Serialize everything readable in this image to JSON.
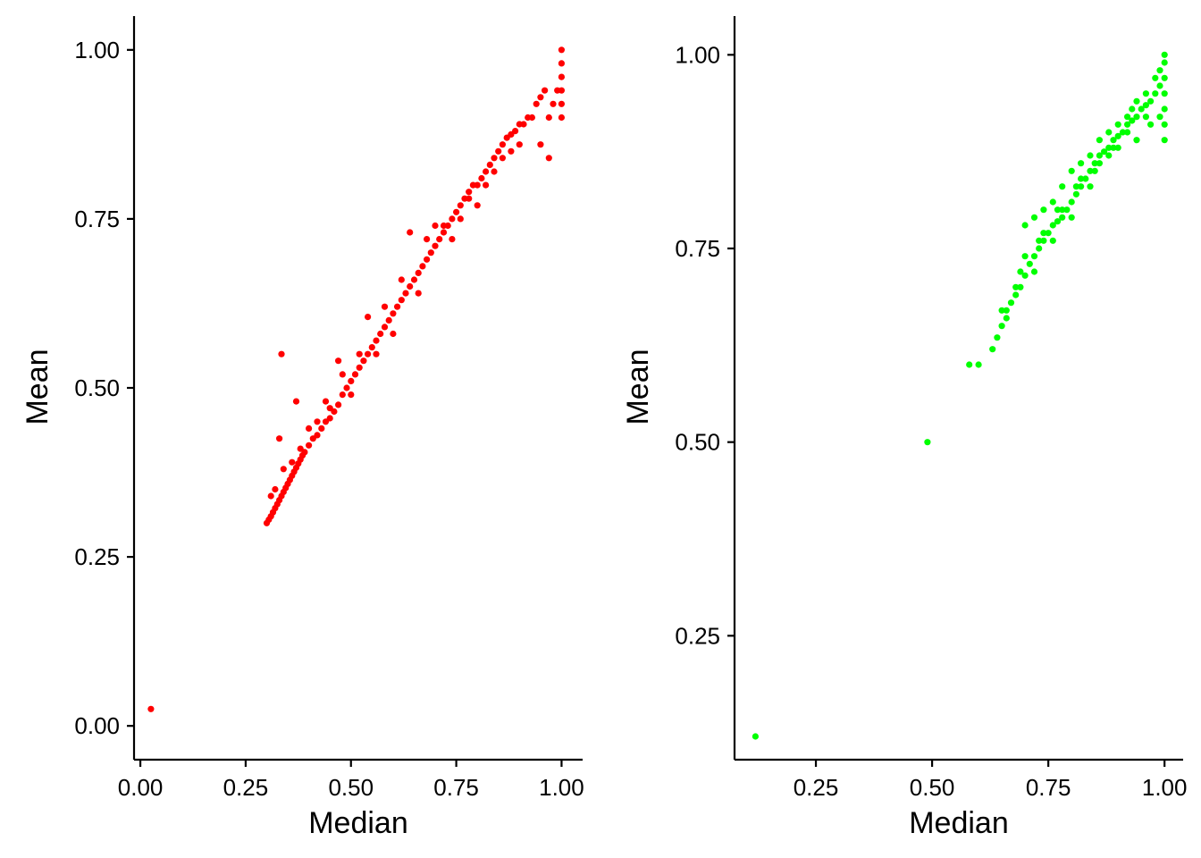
{
  "chart_data": [
    {
      "type": "scatter",
      "title": "",
      "xlabel": "Median",
      "ylabel": "Mean",
      "xlim": [
        -0.015,
        1.05
      ],
      "ylim": [
        -0.05,
        1.05
      ],
      "xticks": [
        0.0,
        0.25,
        0.5,
        0.75,
        1.0
      ],
      "xtick_labels": [
        "0.00",
        "0.25",
        "0.50",
        "0.75",
        "1.00"
      ],
      "yticks": [
        0.0,
        0.25,
        0.5,
        0.75,
        1.0
      ],
      "ytick_labels": [
        "0.00",
        "0.25",
        "0.50",
        "0.75",
        "1.00"
      ],
      "grid": false,
      "legend": "none",
      "point_color": "#ff0000",
      "series": [
        {
          "points": [
            [
              0.025,
              0.025
            ],
            [
              0.3,
              0.3
            ],
            [
              0.305,
              0.305
            ],
            [
              0.31,
              0.31
            ],
            [
              0.315,
              0.316
            ],
            [
              0.32,
              0.322
            ],
            [
              0.325,
              0.328
            ],
            [
              0.33,
              0.334
            ],
            [
              0.335,
              0.34
            ],
            [
              0.34,
              0.346
            ],
            [
              0.345,
              0.352
            ],
            [
              0.35,
              0.358
            ],
            [
              0.355,
              0.364
            ],
            [
              0.36,
              0.37
            ],
            [
              0.365,
              0.376
            ],
            [
              0.37,
              0.382
            ],
            [
              0.375,
              0.388
            ],
            [
              0.38,
              0.394
            ],
            [
              0.385,
              0.4
            ],
            [
              0.39,
              0.405
            ],
            [
              0.4,
              0.415
            ],
            [
              0.41,
              0.425
            ],
            [
              0.42,
              0.43
            ],
            [
              0.43,
              0.44
            ],
            [
              0.44,
              0.45
            ],
            [
              0.45,
              0.455
            ],
            [
              0.46,
              0.465
            ],
            [
              0.47,
              0.475
            ],
            [
              0.48,
              0.49
            ],
            [
              0.49,
              0.5
            ],
            [
              0.5,
              0.51
            ],
            [
              0.51,
              0.52
            ],
            [
              0.52,
              0.53
            ],
            [
              0.53,
              0.54
            ],
            [
              0.54,
              0.55
            ],
            [
              0.55,
              0.56
            ],
            [
              0.56,
              0.57
            ],
            [
              0.57,
              0.58
            ],
            [
              0.58,
              0.59
            ],
            [
              0.59,
              0.6
            ],
            [
              0.6,
              0.61
            ],
            [
              0.61,
              0.62
            ],
            [
              0.62,
              0.63
            ],
            [
              0.63,
              0.64
            ],
            [
              0.64,
              0.65
            ],
            [
              0.65,
              0.66
            ],
            [
              0.66,
              0.67
            ],
            [
              0.67,
              0.68
            ],
            [
              0.68,
              0.69
            ],
            [
              0.69,
              0.7
            ],
            [
              0.7,
              0.71
            ],
            [
              0.71,
              0.72
            ],
            [
              0.72,
              0.73
            ],
            [
              0.73,
              0.74
            ],
            [
              0.74,
              0.75
            ],
            [
              0.75,
              0.76
            ],
            [
              0.76,
              0.77
            ],
            [
              0.77,
              0.78
            ],
            [
              0.78,
              0.79
            ],
            [
              0.79,
              0.8
            ],
            [
              0.8,
              0.8
            ],
            [
              0.81,
              0.81
            ],
            [
              0.82,
              0.82
            ],
            [
              0.83,
              0.83
            ],
            [
              0.84,
              0.84
            ],
            [
              0.85,
              0.85
            ],
            [
              0.86,
              0.86
            ],
            [
              0.87,
              0.87
            ],
            [
              0.88,
              0.875
            ],
            [
              0.89,
              0.88
            ],
            [
              0.9,
              0.89
            ],
            [
              0.91,
              0.89
            ],
            [
              0.92,
              0.9
            ],
            [
              0.93,
              0.9
            ],
            [
              0.94,
              0.92
            ],
            [
              0.95,
              0.93
            ],
            [
              0.96,
              0.94
            ],
            [
              0.97,
              0.9
            ],
            [
              0.98,
              0.92
            ],
            [
              0.99,
              0.94
            ],
            [
              1.0,
              0.9
            ],
            [
              1.0,
              0.92
            ],
            [
              1.0,
              0.94
            ],
            [
              1.0,
              0.96
            ],
            [
              1.0,
              0.98
            ],
            [
              1.0,
              1.0
            ],
            [
              0.335,
              0.55
            ],
            [
              0.33,
              0.425
            ],
            [
              0.37,
              0.48
            ],
            [
              0.47,
              0.54
            ],
            [
              0.64,
              0.73
            ],
            [
              0.54,
              0.605
            ],
            [
              0.45,
              0.47
            ],
            [
              0.4,
              0.44
            ],
            [
              0.38,
              0.41
            ],
            [
              0.36,
              0.39
            ],
            [
              0.42,
              0.45
            ],
            [
              0.52,
              0.55
            ],
            [
              0.58,
              0.62
            ],
            [
              0.62,
              0.66
            ],
            [
              0.7,
              0.74
            ],
            [
              0.72,
              0.74
            ],
            [
              0.76,
              0.75
            ],
            [
              0.78,
              0.78
            ],
            [
              0.84,
              0.82
            ],
            [
              0.86,
              0.84
            ],
            [
              0.88,
              0.85
            ],
            [
              0.9,
              0.86
            ],
            [
              0.95,
              0.86
            ],
            [
              0.97,
              0.84
            ],
            [
              0.82,
              0.8
            ],
            [
              0.8,
              0.77
            ],
            [
              0.56,
              0.55
            ],
            [
              0.5,
              0.49
            ],
            [
              0.6,
              0.58
            ],
            [
              0.66,
              0.64
            ],
            [
              0.74,
              0.72
            ],
            [
              0.68,
              0.72
            ],
            [
              0.31,
              0.34
            ],
            [
              0.32,
              0.35
            ],
            [
              0.34,
              0.38
            ],
            [
              0.44,
              0.48
            ],
            [
              0.48,
              0.52
            ]
          ]
        }
      ]
    },
    {
      "type": "scatter",
      "title": "",
      "xlabel": "Median",
      "ylabel": "Mean",
      "xlim": [
        0.075,
        1.04
      ],
      "ylim": [
        0.09,
        1.05
      ],
      "xticks": [
        0.25,
        0.5,
        0.75,
        1.0
      ],
      "xtick_labels": [
        "0.25",
        "0.50",
        "0.75",
        "1.00"
      ],
      "yticks": [
        0.25,
        0.5,
        0.75,
        1.0
      ],
      "ytick_labels": [
        "0.25",
        "0.50",
        "0.75",
        "1.00"
      ],
      "grid": false,
      "legend": "none",
      "point_color": "#00ff00",
      "series": [
        {
          "points": [
            [
              0.12,
              0.12
            ],
            [
              0.49,
              0.5
            ],
            [
              0.58,
              0.6
            ],
            [
              0.6,
              0.6
            ],
            [
              0.63,
              0.62
            ],
            [
              0.64,
              0.635
            ],
            [
              0.65,
              0.65
            ],
            [
              0.66,
              0.67
            ],
            [
              0.67,
              0.68
            ],
            [
              0.68,
              0.69
            ],
            [
              0.69,
              0.7
            ],
            [
              0.7,
              0.715
            ],
            [
              0.71,
              0.73
            ],
            [
              0.72,
              0.74
            ],
            [
              0.73,
              0.75
            ],
            [
              0.74,
              0.76
            ],
            [
              0.75,
              0.77
            ],
            [
              0.76,
              0.78
            ],
            [
              0.77,
              0.785
            ],
            [
              0.78,
              0.79
            ],
            [
              0.79,
              0.8
            ],
            [
              0.8,
              0.81
            ],
            [
              0.81,
              0.82
            ],
            [
              0.82,
              0.83
            ],
            [
              0.83,
              0.84
            ],
            [
              0.84,
              0.85
            ],
            [
              0.85,
              0.86
            ],
            [
              0.86,
              0.87
            ],
            [
              0.87,
              0.875
            ],
            [
              0.88,
              0.88
            ],
            [
              0.89,
              0.89
            ],
            [
              0.9,
              0.895
            ],
            [
              0.91,
              0.9
            ],
            [
              0.92,
              0.91
            ],
            [
              0.93,
              0.915
            ],
            [
              0.94,
              0.92
            ],
            [
              0.95,
              0.93
            ],
            [
              0.96,
              0.935
            ],
            [
              0.97,
              0.94
            ],
            [
              0.98,
              0.95
            ],
            [
              0.99,
              0.96
            ],
            [
              1.0,
              0.89
            ],
            [
              1.0,
              0.91
            ],
            [
              1.0,
              0.93
            ],
            [
              1.0,
              0.95
            ],
            [
              1.0,
              0.97
            ],
            [
              1.0,
              0.99
            ],
            [
              1.0,
              1.0
            ],
            [
              0.7,
              0.78
            ],
            [
              0.72,
              0.79
            ],
            [
              0.74,
              0.8
            ],
            [
              0.76,
              0.81
            ],
            [
              0.78,
              0.83
            ],
            [
              0.8,
              0.85
            ],
            [
              0.82,
              0.86
            ],
            [
              0.84,
              0.87
            ],
            [
              0.86,
              0.89
            ],
            [
              0.88,
              0.9
            ],
            [
              0.9,
              0.91
            ],
            [
              0.92,
              0.92
            ],
            [
              0.94,
              0.94
            ],
            [
              0.96,
              0.95
            ],
            [
              0.98,
              0.97
            ],
            [
              0.7,
              0.74
            ],
            [
              0.74,
              0.77
            ],
            [
              0.78,
              0.8
            ],
            [
              0.82,
              0.84
            ],
            [
              0.86,
              0.86
            ],
            [
              0.9,
              0.88
            ],
            [
              0.94,
              0.89
            ],
            [
              0.97,
              0.91
            ],
            [
              0.99,
              0.92
            ],
            [
              0.66,
              0.66
            ],
            [
              0.68,
              0.7
            ],
            [
              0.72,
              0.72
            ],
            [
              0.76,
              0.76
            ],
            [
              0.8,
              0.79
            ],
            [
              0.84,
              0.83
            ],
            [
              0.88,
              0.87
            ],
            [
              0.92,
              0.9
            ],
            [
              0.96,
              0.92
            ],
            [
              0.99,
              0.98
            ],
            [
              0.65,
              0.67
            ],
            [
              0.69,
              0.72
            ],
            [
              0.73,
              0.76
            ],
            [
              0.77,
              0.8
            ],
            [
              0.81,
              0.83
            ],
            [
              0.85,
              0.85
            ],
            [
              0.89,
              0.88
            ],
            [
              0.93,
              0.93
            ]
          ]
        }
      ]
    }
  ]
}
